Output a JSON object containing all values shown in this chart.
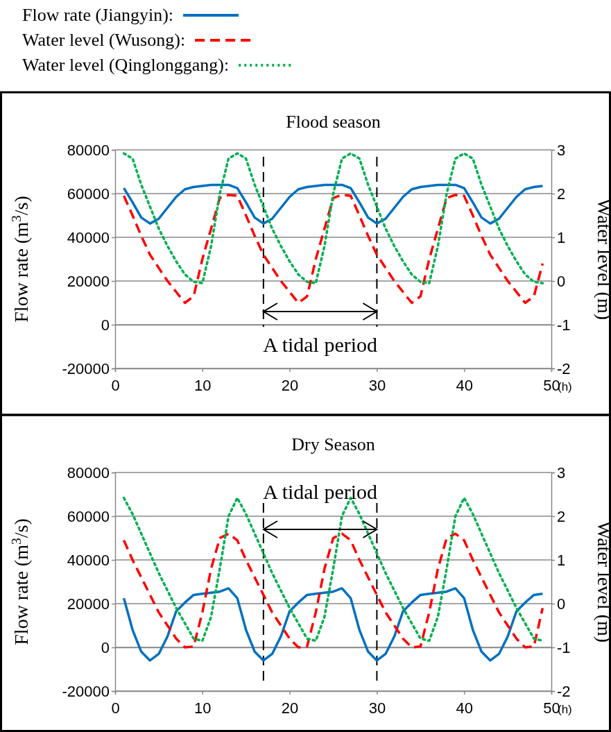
{
  "chart_data": [
    {
      "type": "line",
      "title": "Flood season",
      "ylabel": "Flow rate (m$^{3}$/s)",
      "y2label": "Water level (m)",
      "xlabel": "(h)",
      "legend": "top",
      "grid": "y",
      "x": [
        1,
        2,
        3,
        4,
        5,
        6,
        7,
        8,
        9,
        10,
        11,
        12,
        13,
        14,
        15,
        16,
        17,
        18,
        19,
        20,
        21,
        22,
        23,
        24,
        25,
        26,
        27,
        28,
        29,
        30,
        31,
        32,
        33,
        34,
        35,
        36,
        37,
        38,
        39,
        40,
        41,
        42,
        43,
        44,
        45,
        46,
        47,
        48,
        49
      ],
      "xlim": [
        0,
        50
      ],
      "xticks": [
        0,
        10,
        20,
        30,
        40,
        50
      ],
      "ylim": [
        -20000,
        80000
      ],
      "yticks": [
        -20000,
        0,
        20000,
        40000,
        60000,
        80000
      ],
      "y2lim": [
        -2,
        3
      ],
      "y2ticks": [
        -2,
        -1,
        0,
        1,
        2,
        3
      ],
      "series": [
        {
          "name": "Flow rate (Jiangyin):",
          "color": "#0070c0",
          "line_style": "solid",
          "values": [
            62500,
            56000,
            49000,
            46300,
            48500,
            53500,
            58500,
            62000,
            63000,
            63500,
            64000,
            64000,
            64000,
            62500,
            56000,
            49000,
            46300,
            48500,
            53500,
            58500,
            62000,
            63000,
            63500,
            64000,
            64000,
            64000,
            62500,
            56000,
            49000,
            46300,
            48500,
            53500,
            58500,
            62000,
            63000,
            63500,
            64000,
            64000,
            64000,
            62500,
            56000,
            49000,
            46300,
            48500,
            53500,
            58500,
            62000,
            63000,
            63500
          ]
        },
        {
          "name": "Water level (Wusong):",
          "color": "#ff0000",
          "line_style": "dashed",
          "axis": "y2",
          "values": [
            1.95,
            1.5,
            1.03,
            0.6,
            0.3,
            0.0,
            -0.25,
            -0.5,
            -0.35,
            0.5,
            1.2,
            1.9,
            1.97,
            1.95,
            1.5,
            1.03,
            0.6,
            0.3,
            0.0,
            -0.25,
            -0.5,
            -0.35,
            0.5,
            1.2,
            1.9,
            1.97,
            1.95,
            1.5,
            1.03,
            0.6,
            0.3,
            0.0,
            -0.25,
            -0.5,
            -0.35,
            0.5,
            1.2,
            1.9,
            1.97,
            1.95,
            1.5,
            1.03,
            0.6,
            0.3,
            0.0,
            -0.25,
            -0.5,
            -0.35,
            0.4
          ]
        },
        {
          "name": "Water level (Qinglonggang):",
          "color": "#00b050",
          "line_style": "dotted",
          "axis": "y2",
          "values": [
            2.92,
            2.8,
            2.2,
            1.7,
            1.2,
            0.8,
            0.45,
            0.15,
            -0.02,
            -0.05,
            0.8,
            2.0,
            2.8,
            2.92,
            2.8,
            2.2,
            1.7,
            1.2,
            0.8,
            0.45,
            0.15,
            -0.02,
            -0.05,
            0.8,
            2.0,
            2.8,
            2.92,
            2.8,
            2.2,
            1.7,
            1.2,
            0.8,
            0.45,
            0.15,
            -0.02,
            -0.05,
            0.8,
            2.0,
            2.8,
            2.92,
            2.8,
            2.2,
            1.7,
            1.2,
            0.8,
            0.45,
            0.15,
            -0.02,
            -0.05
          ]
        }
      ],
      "ref_lines": [
        {
          "axis": "x",
          "value": 17,
          "color": "#000000",
          "line_style": "dashed"
        },
        {
          "axis": "x",
          "value": 30,
          "color": "#000000",
          "line_style": "dashed"
        }
      ],
      "annotations": [
        "A tidal period"
      ]
    },
    {
      "type": "line",
      "title": "Dry Season",
      "ylabel": "Flow rate (m$^{3}$/s)",
      "y2label": "Water level (m)",
      "xlabel": "(h)",
      "grid": "y",
      "x": [
        1,
        2,
        3,
        4,
        5,
        6,
        7,
        8,
        9,
        10,
        11,
        12,
        13,
        14,
        15,
        16,
        17,
        18,
        19,
        20,
        21,
        22,
        23,
        24,
        25,
        26,
        27,
        28,
        29,
        30,
        31,
        32,
        33,
        34,
        35,
        36,
        37,
        38,
        39,
        40,
        41,
        42,
        43,
        44,
        45,
        46,
        47,
        48,
        49
      ],
      "xlim": [
        0,
        50
      ],
      "xticks": [
        0,
        10,
        20,
        30,
        40,
        50
      ],
      "ylim": [
        -20000,
        80000
      ],
      "yticks": [
        -20000,
        0,
        20000,
        40000,
        60000,
        80000
      ],
      "y2lim": [
        -2,
        3
      ],
      "y2ticks": [
        -2,
        -1,
        0,
        1,
        2,
        3
      ],
      "series": [
        {
          "color": "#0070c0",
          "line_style": "solid",
          "values": [
            22500,
            8000,
            -2000,
            -6000,
            -3000,
            5000,
            16500,
            20500,
            24000,
            24500,
            25000,
            25500,
            27000,
            22500,
            8000,
            -2000,
            -6000,
            -3000,
            5000,
            16500,
            20500,
            24000,
            24500,
            25000,
            25500,
            27000,
            22500,
            8000,
            -2000,
            -6000,
            -3000,
            5000,
            16500,
            20500,
            24000,
            24500,
            25000,
            25500,
            27000,
            22500,
            8000,
            -2000,
            -6000,
            -3000,
            5000,
            16500,
            20500,
            24000,
            24500
          ]
        },
        {
          "color": "#ff0000",
          "line_style": "dashed",
          "axis": "y2",
          "values": [
            1.45,
            1.0,
            0.6,
            0.2,
            -0.2,
            -0.5,
            -0.8,
            -1.0,
            -0.98,
            -0.2,
            0.8,
            1.5,
            1.6,
            1.45,
            1.0,
            0.6,
            0.2,
            -0.2,
            -0.5,
            -0.8,
            -1.0,
            -0.98,
            -0.2,
            0.8,
            1.5,
            1.6,
            1.45,
            1.0,
            0.6,
            0.2,
            -0.2,
            -0.5,
            -0.8,
            -1.0,
            -0.98,
            -0.2,
            0.8,
            1.5,
            1.6,
            1.45,
            1.0,
            0.6,
            0.2,
            -0.2,
            -0.5,
            -0.8,
            -1.0,
            -0.98,
            -0.1
          ]
        },
        {
          "color": "#00b050",
          "line_style": "dotted",
          "axis": "y2",
          "values": [
            2.42,
            2.05,
            1.6,
            1.15,
            0.7,
            0.3,
            -0.1,
            -0.45,
            -0.8,
            -0.85,
            -0.3,
            0.8,
            2.0,
            2.42,
            2.05,
            1.6,
            1.15,
            0.7,
            0.3,
            -0.1,
            -0.45,
            -0.8,
            -0.85,
            -0.3,
            0.8,
            2.0,
            2.42,
            2.05,
            1.6,
            1.15,
            0.7,
            0.3,
            -0.1,
            -0.45,
            -0.8,
            -0.85,
            -0.3,
            0.8,
            2.0,
            2.42,
            2.05,
            1.6,
            1.15,
            0.7,
            0.3,
            -0.1,
            -0.45,
            -0.8,
            -0.85
          ]
        }
      ],
      "ref_lines": [
        {
          "axis": "x",
          "value": 17,
          "color": "#000000",
          "line_style": "dashed"
        },
        {
          "axis": "x",
          "value": 30,
          "color": "#000000",
          "line_style": "dashed"
        }
      ],
      "annotations": [
        "A tidal period"
      ]
    }
  ]
}
